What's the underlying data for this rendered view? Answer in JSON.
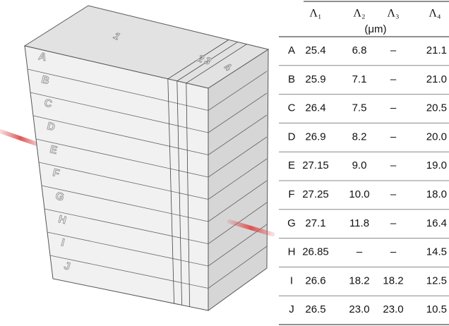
{
  "diagram": {
    "regions": [
      "1",
      "2",
      "3",
      "4"
    ],
    "layers": [
      "A",
      "B",
      "C",
      "D",
      "E",
      "F",
      "G",
      "H",
      "I",
      "J"
    ]
  },
  "table": {
    "headers": [
      "Λ₁",
      "Λ₂",
      "Λ₃",
      "Λ₄"
    ],
    "unit": "(μm)",
    "rows": [
      [
        "A",
        "25.4",
        "6.8",
        "–",
        "21.1"
      ],
      [
        "B",
        "25.9",
        "7.1",
        "–",
        "21.0"
      ],
      [
        "C",
        "26.4",
        "7.5",
        "–",
        "20.5"
      ],
      [
        "D",
        "26.9",
        "8.2",
        "–",
        "20.0"
      ],
      [
        "E",
        "27.15",
        "9.0",
        "–",
        "19.0"
      ],
      [
        "F",
        "27.25",
        "10.0",
        "–",
        "18.0"
      ],
      [
        "G",
        "27.1",
        "11.8",
        "–",
        "16.4"
      ],
      [
        "H",
        "26.85",
        "–",
        "–",
        "14.5"
      ],
      [
        "I",
        "26.6",
        "18.2",
        "18.2",
        "12.5"
      ],
      [
        "J",
        "26.5",
        "23.0",
        "23.0",
        "10.5"
      ]
    ]
  }
}
